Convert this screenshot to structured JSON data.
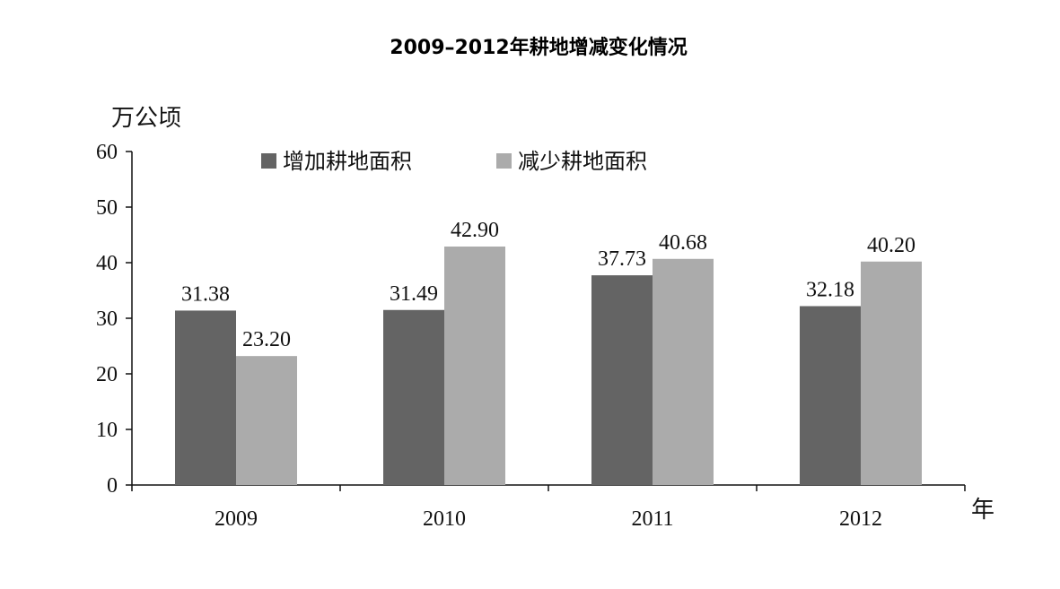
{
  "chart_data": {
    "type": "bar",
    "title": "2009–2012年耕地增减变化情况",
    "ylabel": "万公顷",
    "xlabel": "年",
    "categories": [
      "2009",
      "2010",
      "2011",
      "2012"
    ],
    "series": [
      {
        "name": "增加耕地面积",
        "values": [
          31.38,
          31.49,
          37.73,
          32.18
        ],
        "labels": [
          "31.38",
          "31.49",
          "37.73",
          "32.18"
        ],
        "color": "#646464"
      },
      {
        "name": "减少耕地面积",
        "values": [
          23.2,
          42.9,
          40.68,
          40.2
        ],
        "labels": [
          "23.20",
          "42.90",
          "40.68",
          "40.20"
        ],
        "color": "#ababab"
      }
    ],
    "ylim": [
      0,
      60
    ],
    "yticks": [
      "0",
      "10",
      "20",
      "30",
      "40",
      "50",
      "60"
    ],
    "grid": false,
    "legend": "top"
  }
}
